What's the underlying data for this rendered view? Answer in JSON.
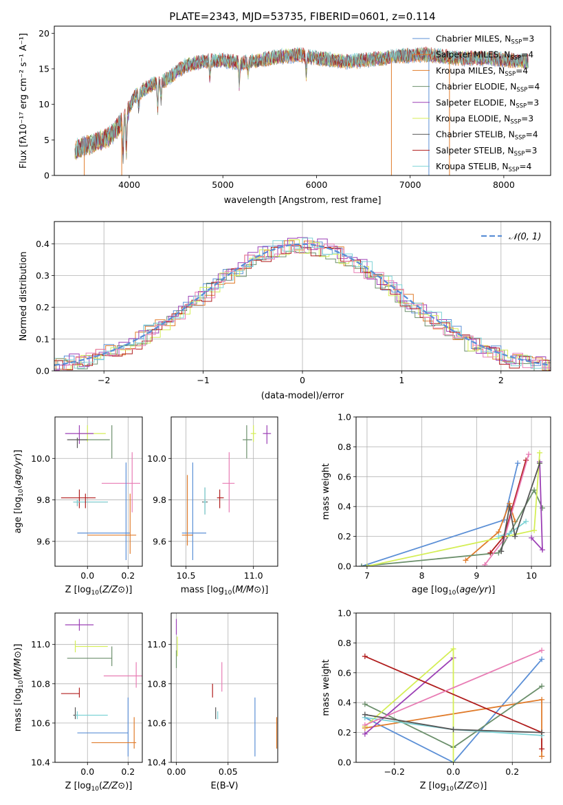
{
  "colors": {
    "Chabrier MILES": "#5b8fd6",
    "Salpeter MILES": "#e07b2a",
    "Kroupa MILES": "#e07b2a",
    "Chabrier ELODIE": "#6b8f6b",
    "Salpeter ELODIE": "#9b3fb5",
    "Kroupa ELODIE": "#d4ee55",
    "Chabrier STELIB": "#555555",
    "Salpeter STELIB": "#b01c1c",
    "Kroupa STELIB": "#7dd3d6",
    "pink": "#e87cb4",
    "normal": "#5b8fd6"
  },
  "chart_data": [
    {
      "type": "line",
      "title": "PLATE=2343, MJD=53735, FIBERID=0601, z=0.114",
      "xlabel": "wavelength [Angstrom, rest frame]",
      "ylabel": "Flux [fλ10⁻¹⁷ erg cm⁻² s⁻¹ A⁻¹]",
      "xlim": [
        3200,
        8500
      ],
      "ylim": [
        0,
        21
      ],
      "xticks": [
        "4000",
        "5000",
        "6000",
        "7000",
        "8000"
      ],
      "yticks": [
        "0",
        "5",
        "10",
        "15",
        "20"
      ],
      "continuum": {
        "x": [
          3400,
          3600,
          3800,
          3950,
          4050,
          4200,
          4400,
          4600,
          4800,
          5000,
          5200,
          5500,
          5800,
          6000,
          6300,
          6600,
          6900,
          7200,
          7500,
          7800,
          8050,
          8260
        ],
        "y": [
          3.5,
          4.5,
          5.5,
          8,
          11,
          12.5,
          13.5,
          15.5,
          16,
          16.2,
          15.8,
          16.5,
          17,
          16.5,
          16,
          16.3,
          16.8,
          17,
          16.5,
          16.5,
          16.2,
          16
        ]
      },
      "legend": [
        {
          "name": "Chabrier MILES",
          "text": "Chabrier MILES, N",
          "sub": "SSP",
          "tail": "=3"
        },
        {
          "name": "Salpeter MILES",
          "text": "Salpeter MILES, N",
          "sub": "SSP",
          "tail": "=4"
        },
        {
          "name": "Kroupa MILES",
          "text": "Kroupa MILES, N",
          "sub": "SSP",
          "tail": "=4"
        },
        {
          "name": "Chabrier ELODIE",
          "text": "Chabrier ELODIE, N",
          "sub": "SSP",
          "tail": "=4"
        },
        {
          "name": "Salpeter ELODIE",
          "text": "Salpeter ELODIE, N",
          "sub": "SSP",
          "tail": "=3"
        },
        {
          "name": "Kroupa ELODIE",
          "text": "Kroupa ELODIE, N",
          "sub": "SSP",
          "tail": "=3"
        },
        {
          "name": "Chabrier STELIB",
          "text": "Chabrier STELIB, N",
          "sub": "SSP",
          "tail": "=4"
        },
        {
          "name": "Salpeter STELIB",
          "text": "Salpeter STELIB, N",
          "sub": "SSP",
          "tail": "=3"
        },
        {
          "name": "Kroupa STELIB",
          "text": "Kroupa STELIB, N",
          "sub": "SSP",
          "tail": "=4"
        }
      ]
    },
    {
      "type": "histogram",
      "xlabel": "(data-model)/error",
      "ylabel": "Normed distribution",
      "xlim": [
        -2.5,
        2.5
      ],
      "ylim": [
        0,
        0.47
      ],
      "xticks": [
        "−2",
        "−1",
        "0",
        "1",
        "2"
      ],
      "yticks": [
        "0.0",
        "0.1",
        "0.2",
        "0.3",
        "0.4"
      ],
      "legend": "𝒩(0, 1)",
      "series_colors": [
        "Chabrier MILES",
        "Salpeter MILES",
        "Chabrier ELODIE",
        "Salpeter ELODIE",
        "Kroupa ELODIE",
        "Salpeter STELIB",
        "Kroupa STELIB",
        "pink"
      ]
    },
    {
      "type": "scatter",
      "xlabel": "Z [log10(Z/Z⊙)]",
      "ylabel": "age  [log10(age/yr)]",
      "xlim": [
        -0.16,
        0.27
      ],
      "ylim": [
        9.48,
        10.2
      ],
      "xticks": [
        "0.0",
        "0.2"
      ],
      "yticks": [
        "9.6",
        "9.8",
        "10.0"
      ],
      "points": [
        {
          "c": "Kroupa ELODIE",
          "x": 0.0,
          "y": 10.12,
          "xe": [
            -0.05,
            0.09
          ],
          "ye": [
            10.08,
            10.16
          ]
        },
        {
          "c": "Salpeter ELODIE",
          "x": -0.04,
          "y": 10.12,
          "xe": [
            -0.11,
            0.03
          ],
          "ye": [
            10.07,
            10.16
          ]
        },
        {
          "c": "Chabrier ELODIE",
          "x": 0.12,
          "y": 10.09,
          "xe": [
            -0.05,
            0.11
          ],
          "ye": [
            10.0,
            10.16
          ]
        },
        {
          "c": "Chabrier STELIB",
          "x": -0.05,
          "y": 10.09,
          "xe": [
            -0.1,
            0.0
          ],
          "ye": [
            10.05,
            10.1
          ]
        },
        {
          "c": "pink",
          "x": 0.22,
          "y": 9.88,
          "xe": [
            0.07,
            0.26
          ],
          "ye": [
            9.74,
            10.03
          ]
        },
        {
          "c": "Salpeter STELIB",
          "x": -0.04,
          "y": 9.81,
          "xe": [
            -0.13,
            0.04
          ],
          "ye": [
            9.76,
            9.85
          ]
        },
        {
          "c": "Chabrier STELIB",
          "x": -0.05,
          "y": 9.79,
          "xe": [
            -0.07,
            0.1
          ],
          "ye": [
            9.77,
            9.8
          ]
        },
        {
          "c": "Kroupa STELIB",
          "x": -0.05,
          "y": 9.79,
          "xe": [
            -0.07,
            0.1
          ],
          "ye": [
            9.77,
            9.8
          ]
        },
        {
          "c": "Chabrier MILES",
          "x": 0.19,
          "y": 9.64,
          "xe": [
            -0.05,
            0.21
          ],
          "ye": [
            9.51,
            9.98
          ]
        },
        {
          "c": "Salpeter MILES",
          "x": 0.21,
          "y": 9.63,
          "xe": [
            0.0,
            0.24
          ],
          "ye": [
            9.54,
            9.83
          ]
        },
        {
          "c": "Salpeter STELIB",
          "x": -0.01,
          "y": 9.79,
          "xe": [
            -0.01,
            -0.01
          ],
          "ye": [
            9.76,
            9.83
          ]
        }
      ]
    },
    {
      "type": "scatter",
      "xlabel": "mass [log10(M/M⊙)]",
      "ylabel": "",
      "xlim": [
        10.39,
        11.18
      ],
      "ylim": [
        9.48,
        10.2
      ],
      "xticks": [
        "10.5",
        "11.0"
      ],
      "yticks": [
        "9.6",
        "9.8",
        "10.0"
      ],
      "points": [
        {
          "c": "Kroupa ELODIE",
          "x": 11.0,
          "y": 10.12,
          "xe": [
            10.98,
            11.02
          ],
          "ye": [
            10.08,
            10.16
          ]
        },
        {
          "c": "Salpeter ELODIE",
          "x": 11.1,
          "y": 10.12,
          "xe": [
            11.07,
            11.13
          ],
          "ye": [
            10.07,
            10.16
          ]
        },
        {
          "c": "Chabrier ELODIE",
          "x": 10.95,
          "y": 10.09,
          "xe": [
            10.92,
            10.99
          ],
          "ye": [
            10.0,
            10.16
          ]
        },
        {
          "c": "pink",
          "x": 10.82,
          "y": 9.88,
          "xe": [
            10.77,
            10.86
          ],
          "ye": [
            9.74,
            10.03
          ]
        },
        {
          "c": "Salpeter STELIB",
          "x": 10.75,
          "y": 9.81,
          "xe": [
            10.73,
            10.78
          ],
          "ye": [
            9.76,
            9.85
          ]
        },
        {
          "c": "Chabrier STELIB",
          "x": 10.64,
          "y": 9.79,
          "xe": [
            10.62,
            10.66
          ],
          "ye": [
            9.73,
            9.86
          ]
        },
        {
          "c": "Kroupa STELIB",
          "x": 10.64,
          "y": 9.79,
          "xe": [
            10.63,
            10.65
          ],
          "ye": [
            9.73,
            9.86
          ]
        },
        {
          "c": "Chabrier MILES",
          "x": 10.55,
          "y": 9.64,
          "xe": [
            10.47,
            10.65
          ],
          "ye": [
            9.51,
            9.98
          ]
        },
        {
          "c": "Salpeter MILES",
          "x": 10.51,
          "y": 9.63,
          "xe": [
            10.47,
            10.55
          ],
          "ye": [
            9.58,
            9.92
          ]
        }
      ]
    },
    {
      "type": "line",
      "xlabel": "age  [log10(age/yr)]",
      "ylabel": "mass weight",
      "xlim": [
        6.8,
        10.35
      ],
      "ylim": [
        0,
        1
      ],
      "xticks": [
        "7",
        "8",
        "9",
        "10"
      ],
      "yticks": [
        "0.0",
        "0.2",
        "0.4",
        "0.6",
        "0.8",
        "1.0"
      ],
      "series": [
        {
          "c": "Chabrier MILES",
          "x": [
            6.9,
            9.5,
            9.75
          ],
          "y": [
            0.0,
            0.31,
            0.69
          ]
        },
        {
          "c": "Salpeter MILES",
          "x": [
            8.8,
            9.4,
            9.6,
            9.7
          ],
          "y": [
            0.04,
            0.23,
            0.42,
            0.3
          ]
        },
        {
          "c": "Chabrier ELODIE",
          "x": [
            6.9,
            9.4,
            10.05,
            10.2
          ],
          "y": [
            0.0,
            0.09,
            0.51,
            0.39
          ]
        },
        {
          "c": "Salpeter ELODIE",
          "x": [
            10.0,
            10.2,
            10.15
          ],
          "y": [
            0.19,
            0.11,
            0.7
          ]
        },
        {
          "c": "Kroupa ELODIE",
          "x": [
            7.0,
            10.05,
            10.15
          ],
          "y": [
            0.0,
            0.24,
            0.76
          ]
        },
        {
          "c": "Salpeter STELIB",
          "x": [
            9.25,
            9.5,
            9.9
          ],
          "y": [
            0.09,
            0.2,
            0.71
          ]
        },
        {
          "c": "Kroupa STELIB",
          "x": [
            9.4,
            9.6,
            9.9
          ],
          "y": [
            0.2,
            0.22,
            0.3
          ]
        },
        {
          "c": "pink",
          "x": [
            9.15,
            9.5,
            9.95
          ],
          "y": [
            0.01,
            0.18,
            0.75
          ]
        },
        {
          "c": "Chabrier STELIB",
          "x": [
            9.45,
            9.6,
            9.7,
            10.15
          ],
          "y": [
            0.1,
            0.4,
            0.2,
            0.69
          ]
        }
      ]
    },
    {
      "type": "scatter",
      "xlabel": "Z [log10(Z/Z⊙)]",
      "ylabel": "mass [log10(M/M⊙)]",
      "xlim": [
        -0.16,
        0.27
      ],
      "ylim": [
        10.4,
        11.16
      ],
      "xticks": [
        "0.0",
        "0.2"
      ],
      "yticks": [
        "10.4",
        "10.6",
        "10.8",
        "11.0"
      ],
      "points": [
        {
          "c": "Salpeter ELODIE",
          "x": -0.04,
          "y": 11.1,
          "xe": [
            -0.11,
            0.03
          ],
          "ye": [
            11.07,
            11.13
          ]
        },
        {
          "c": "Kroupa ELODIE",
          "x": -0.06,
          "y": 10.99,
          "xe": [
            -0.06,
            0.1
          ],
          "ye": [
            10.96,
            11.02
          ]
        },
        {
          "c": "Chabrier ELODIE",
          "x": 0.12,
          "y": 10.93,
          "xe": [
            -0.1,
            0.12
          ],
          "ye": [
            10.89,
            10.99
          ]
        },
        {
          "c": "pink",
          "x": 0.24,
          "y": 10.84,
          "xe": [
            0.08,
            0.27
          ],
          "ye": [
            10.78,
            10.91
          ]
        },
        {
          "c": "Salpeter STELIB",
          "x": -0.04,
          "y": 10.75,
          "xe": [
            -0.13,
            -0.04
          ],
          "ye": [
            10.73,
            10.78
          ]
        },
        {
          "c": "Chabrier STELIB",
          "x": -0.06,
          "y": 10.64,
          "xe": [
            -0.07,
            -0.05
          ],
          "ye": [
            10.62,
            10.68
          ]
        },
        {
          "c": "Kroupa STELIB",
          "x": -0.05,
          "y": 10.64,
          "xe": [
            -0.06,
            0.1
          ],
          "ye": [
            10.62,
            10.66
          ]
        },
        {
          "c": "Chabrier MILES",
          "x": 0.2,
          "y": 10.55,
          "xe": [
            -0.05,
            0.2
          ],
          "ye": [
            10.43,
            10.73
          ]
        },
        {
          "c": "Salpeter MILES",
          "x": 0.23,
          "y": 10.5,
          "xe": [
            0.02,
            0.24
          ],
          "ye": [
            10.47,
            10.63
          ]
        }
      ]
    },
    {
      "type": "scatter",
      "xlabel": "E(B-V)",
      "ylabel": "",
      "xlim": [
        -0.005,
        0.098
      ],
      "ylim": [
        10.4,
        11.16
      ],
      "xticks": [
        "0.00",
        "0.05"
      ],
      "yticks": [
        "10.4",
        "10.6",
        "10.8",
        "11.0"
      ],
      "points": [
        {
          "c": "Salpeter ELODIE",
          "x": 0.0,
          "y": 11.1,
          "xe": [
            0.0,
            0.0
          ],
          "ye": [
            11.05,
            11.13
          ]
        },
        {
          "c": "Kroupa ELODIE",
          "x": 0.001,
          "y": 10.99,
          "xe": [
            0.001,
            0.001
          ],
          "ye": [
            10.94,
            11.04
          ]
        },
        {
          "c": "Chabrier ELODIE",
          "x": 0.0,
          "y": 10.93,
          "xe": [
            0.0,
            0.0
          ],
          "ye": [
            10.88,
            10.97
          ]
        },
        {
          "c": "pink",
          "x": 0.044,
          "y": 10.84,
          "xe": [
            0.044,
            0.044
          ],
          "ye": [
            10.76,
            10.91
          ]
        },
        {
          "c": "Salpeter STELIB",
          "x": 0.035,
          "y": 10.75,
          "xe": [
            0.035,
            0.035
          ],
          "ye": [
            10.73,
            10.8
          ]
        },
        {
          "c": "Chabrier STELIB",
          "x": 0.038,
          "y": 10.64,
          "xe": [
            0.038,
            0.038
          ],
          "ye": [
            10.62,
            10.68
          ]
        },
        {
          "c": "Kroupa STELIB",
          "x": 0.04,
          "y": 10.64,
          "xe": [
            0.04,
            0.04
          ],
          "ye": [
            10.62,
            10.66
          ]
        },
        {
          "c": "Chabrier MILES",
          "x": 0.076,
          "y": 10.55,
          "xe": [
            0.076,
            0.076
          ],
          "ye": [
            10.43,
            10.73
          ]
        },
        {
          "c": "Salpeter MILES",
          "x": 0.097,
          "y": 10.5,
          "xe": [
            0.097,
            0.097
          ],
          "ye": [
            10.47,
            10.63
          ]
        }
      ]
    },
    {
      "type": "line",
      "xlabel": "Z [log10(Z/Z⊙)]",
      "ylabel": "mass weight",
      "xlim": [
        -0.33,
        0.33
      ],
      "ylim": [
        0,
        1
      ],
      "xticks": [
        "−0.2",
        "0.0",
        "0.2"
      ],
      "yticks": [
        "0.0",
        "0.2",
        "0.4",
        "0.6",
        "0.8",
        "1.0"
      ],
      "series": [
        {
          "c": "Chabrier MILES",
          "x": [
            -0.3,
            0.0,
            0.3
          ],
          "y": [
            0.3,
            0.0,
            0.69
          ]
        },
        {
          "c": "Salpeter MILES",
          "x": [
            -0.3,
            0.3,
            0.3
          ],
          "y": [
            0.23,
            0.42,
            0.04
          ]
        },
        {
          "c": "Chabrier ELODIE",
          "x": [
            -0.3,
            0.0,
            0.3
          ],
          "y": [
            0.39,
            0.1,
            0.51
          ]
        },
        {
          "c": "Salpeter ELODIE",
          "x": [
            -0.3,
            0.0
          ],
          "y": [
            0.19,
            0.7
          ]
        },
        {
          "c": "Kroupa ELODIE",
          "x": [
            -0.3,
            0.0,
            0.0
          ],
          "y": [
            0.24,
            0.76,
            0.0
          ]
        },
        {
          "c": "Salpeter STELIB",
          "x": [
            -0.3,
            0.3,
            0.3
          ],
          "y": [
            0.71,
            0.2,
            0.09
          ]
        },
        {
          "c": "Kroupa STELIB",
          "x": [
            -0.3,
            0.0,
            0.3
          ],
          "y": [
            0.3,
            0.22,
            0.18
          ]
        },
        {
          "c": "pink",
          "x": [
            -0.3,
            0.3
          ],
          "y": [
            0.25,
            0.75
          ]
        },
        {
          "c": "Chabrier STELIB",
          "x": [
            -0.3,
            0.0,
            0.3
          ],
          "y": [
            0.32,
            0.22,
            0.2
          ]
        }
      ]
    }
  ]
}
